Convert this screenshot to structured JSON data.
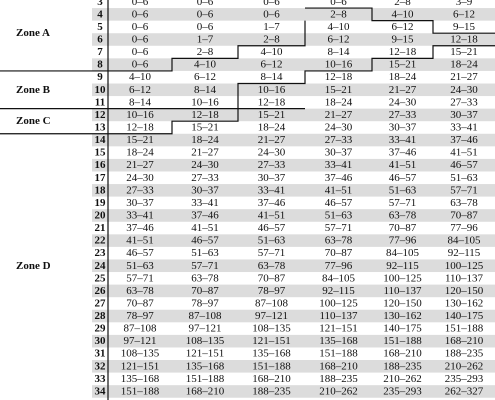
{
  "table": {
    "zones": [
      {
        "label": "Zone A",
        "rows": [
          {
            "number": 3,
            "ranges": [
              "0–6",
              "0–6",
              "0–6",
              "0–6",
              "2–8",
              "3–9"
            ]
          },
          {
            "number": 4,
            "ranges": [
              "0–6",
              "0–6",
              "0–6",
              "2–8",
              "4–10",
              "6–12"
            ]
          },
          {
            "number": 5,
            "ranges": [
              "0–6",
              "0–6",
              "1–7",
              "4–10",
              "6–12",
              "9–15"
            ]
          },
          {
            "number": 6,
            "ranges": [
              "0–6",
              "1–7",
              "2–8",
              "6–12",
              "9–15",
              "12–18"
            ]
          },
          {
            "number": 7,
            "ranges": [
              "0–6",
              "2–8",
              "4–10",
              "8–14",
              "12–18",
              "15–21"
            ]
          },
          {
            "number": 8,
            "ranges": [
              "0–6",
              "4–10",
              "6–12",
              "10–16",
              "15–21",
              "18–24"
            ]
          }
        ]
      },
      {
        "label": "Zone B",
        "rows": [
          {
            "number": 9,
            "ranges": [
              "4–10",
              "6–12",
              "8–14",
              "12–18",
              "18–24",
              "21–27"
            ]
          },
          {
            "number": 10,
            "ranges": [
              "6–12",
              "8–14",
              "10–16",
              "15–21",
              "21–27",
              "24–30"
            ]
          },
          {
            "number": 11,
            "ranges": [
              "8–14",
              "10–16",
              "12–18",
              "18–24",
              "24–30",
              "27–33"
            ]
          }
        ]
      },
      {
        "label": "Zone C",
        "rows": [
          {
            "number": 12,
            "ranges": [
              "10–16",
              "12–18",
              "15–21",
              "21–27",
              "27–33",
              "30–37"
            ]
          },
          {
            "number": 13,
            "ranges": [
              "12–18",
              "15–21",
              "18–24",
              "24–30",
              "30–37",
              "33–41"
            ]
          }
        ]
      },
      {
        "label": "Zone D",
        "rows": [
          {
            "number": 14,
            "ranges": [
              "15–21",
              "18–24",
              "21–27",
              "27–33",
              "33–41",
              "37–46"
            ]
          },
          {
            "number": 15,
            "ranges": [
              "18–24",
              "21–27",
              "24–30",
              "30–37",
              "37–46",
              "41–51"
            ]
          },
          {
            "number": 16,
            "ranges": [
              "21–27",
              "24–30",
              "27–33",
              "33–41",
              "41–51",
              "46–57"
            ]
          },
          {
            "number": 17,
            "ranges": [
              "24–30",
              "27–33",
              "30–37",
              "37–46",
              "46–57",
              "51–63"
            ]
          },
          {
            "number": 18,
            "ranges": [
              "27–33",
              "30–37",
              "33–41",
              "41–51",
              "51–63",
              "57–71"
            ]
          },
          {
            "number": 19,
            "ranges": [
              "30–37",
              "33–41",
              "37–46",
              "46–57",
              "57–71",
              "63–78"
            ]
          },
          {
            "number": 20,
            "ranges": [
              "33–41",
              "37–46",
              "41–51",
              "51–63",
              "63–78",
              "70–87"
            ]
          },
          {
            "number": 21,
            "ranges": [
              "37–46",
              "41–51",
              "46–57",
              "57–71",
              "70–87",
              "77–96"
            ]
          },
          {
            "number": 22,
            "ranges": [
              "41–51",
              "46–57",
              "51–63",
              "63–78",
              "77–96",
              "84–105"
            ]
          },
          {
            "number": 23,
            "ranges": [
              "46–57",
              "51–63",
              "57–71",
              "70–87",
              "84–105",
              "92–115"
            ]
          },
          {
            "number": 24,
            "ranges": [
              "51–63",
              "57–71",
              "63–78",
              "77–96",
              "92–115",
              "100–125"
            ]
          },
          {
            "number": 25,
            "ranges": [
              "57–71",
              "63–78",
              "70–87",
              "84–105",
              "100–125",
              "110–137"
            ]
          },
          {
            "number": 26,
            "ranges": [
              "63–78",
              "70–87",
              "78–97",
              "92–115",
              "110–137",
              "120–150"
            ]
          },
          {
            "number": 27,
            "ranges": [
              "70–87",
              "78–97",
              "87–108",
              "100–125",
              "120–150",
              "130–162"
            ]
          },
          {
            "number": 28,
            "ranges": [
              "78–97",
              "87–108",
              "97–121",
              "110–137",
              "130–162",
              "140–175"
            ]
          },
          {
            "number": 29,
            "ranges": [
              "87–108",
              "97–121",
              "108–135",
              "121–151",
              "140–175",
              "151–188"
            ]
          },
          {
            "number": 30,
            "ranges": [
              "97–121",
              "108–135",
              "121–151",
              "135–168",
              "151–188",
              "168–210"
            ]
          },
          {
            "number": 31,
            "ranges": [
              "108–135",
              "121–151",
              "135–168",
              "151–188",
              "168–210",
              "188–235"
            ]
          },
          {
            "number": 32,
            "ranges": [
              "121–151",
              "135–168",
              "151–188",
              "168–210",
              "188–235",
              "210–262"
            ]
          },
          {
            "number": 33,
            "ranges": [
              "135–168",
              "151–188",
              "168–210",
              "188–235",
              "210–262",
              "235–293"
            ]
          },
          {
            "number": 34,
            "ranges": [
              "151–188",
              "168–210",
              "188–235",
              "210–262",
              "235–293",
              "262–327"
            ]
          }
        ]
      }
    ]
  }
}
